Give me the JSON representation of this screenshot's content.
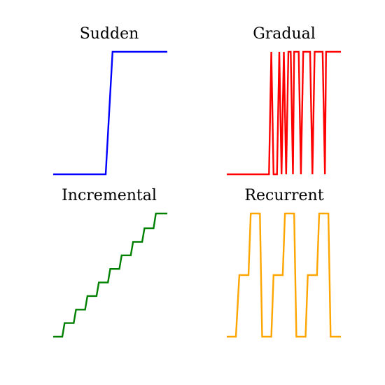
{
  "chart_data": [
    {
      "type": "line",
      "title": "Sudden",
      "color": "#0000ff",
      "ylim": [
        0,
        1
      ],
      "points": [
        [
          0,
          0
        ],
        [
          0.46,
          0
        ],
        [
          0.52,
          1
        ],
        [
          1,
          1
        ]
      ]
    },
    {
      "type": "line",
      "title": "Gradual",
      "color": "#ff0000",
      "ylim": [
        0,
        1
      ],
      "points": [
        [
          0,
          0
        ],
        [
          0.37,
          0
        ],
        [
          0.39,
          1
        ],
        [
          0.41,
          0
        ],
        [
          0.44,
          0
        ],
        [
          0.46,
          1
        ],
        [
          0.48,
          0
        ],
        [
          0.5,
          1
        ],
        [
          0.52,
          0
        ],
        [
          0.54,
          1
        ],
        [
          0.56,
          1
        ],
        [
          0.58,
          0
        ],
        [
          0.59,
          1
        ],
        [
          0.63,
          1
        ],
        [
          0.65,
          0
        ],
        [
          0.67,
          1
        ],
        [
          0.73,
          1
        ],
        [
          0.75,
          0
        ],
        [
          0.77,
          1
        ],
        [
          0.84,
          1
        ],
        [
          0.86,
          0
        ],
        [
          0.87,
          1
        ],
        [
          1,
          1
        ]
      ]
    },
    {
      "type": "line",
      "title": "Incremental",
      "color": "#008000",
      "ylim": [
        0,
        1
      ],
      "points": [
        [
          0,
          0
        ],
        [
          0.08,
          0
        ],
        [
          0.1,
          0.11
        ],
        [
          0.18,
          0.11
        ],
        [
          0.2,
          0.22
        ],
        [
          0.28,
          0.22
        ],
        [
          0.3,
          0.33
        ],
        [
          0.38,
          0.33
        ],
        [
          0.4,
          0.44
        ],
        [
          0.48,
          0.44
        ],
        [
          0.5,
          0.55
        ],
        [
          0.58,
          0.55
        ],
        [
          0.6,
          0.66
        ],
        [
          0.68,
          0.66
        ],
        [
          0.7,
          0.77
        ],
        [
          0.78,
          0.77
        ],
        [
          0.8,
          0.88
        ],
        [
          0.88,
          0.88
        ],
        [
          0.9,
          1
        ],
        [
          1,
          1
        ]
      ]
    },
    {
      "type": "line",
      "title": "Recurrent",
      "color": "#ffa500",
      "ylim": [
        0,
        1
      ],
      "points": [
        [
          0,
          0
        ],
        [
          0.08,
          0
        ],
        [
          0.11,
          0.5
        ],
        [
          0.19,
          0.5
        ],
        [
          0.21,
          1
        ],
        [
          0.29,
          1
        ],
        [
          0.31,
          0
        ],
        [
          0.39,
          0
        ],
        [
          0.41,
          0.5
        ],
        [
          0.49,
          0.5
        ],
        [
          0.51,
          1
        ],
        [
          0.59,
          1
        ],
        [
          0.61,
          0
        ],
        [
          0.69,
          0
        ],
        [
          0.71,
          0.5
        ],
        [
          0.79,
          0.5
        ],
        [
          0.81,
          1
        ],
        [
          0.89,
          1
        ],
        [
          0.91,
          0
        ],
        [
          1,
          0
        ]
      ]
    }
  ]
}
